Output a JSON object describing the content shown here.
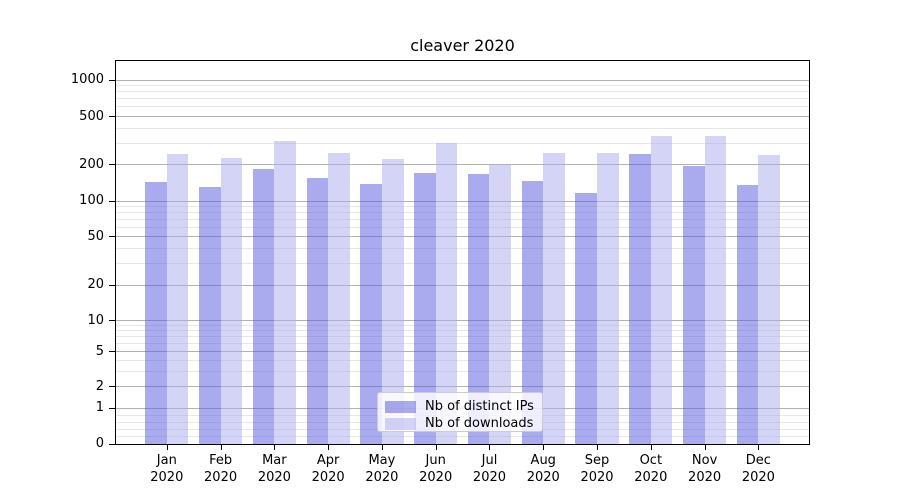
{
  "chart_data": {
    "type": "bar",
    "title": "cleaver 2020",
    "x_categories_month": [
      "Jan",
      "Feb",
      "Mar",
      "Apr",
      "May",
      "Jun",
      "Jul",
      "Aug",
      "Sep",
      "Oct",
      "Nov",
      "Dec"
    ],
    "x_year": "2020",
    "series": [
      {
        "name": "Nb of distinct IPs",
        "color": "#5555dd",
        "display_color": "rgba(85,85,221,0.5)",
        "values": [
          144,
          130,
          186,
          157,
          139,
          171,
          168,
          148,
          117,
          245,
          197,
          137
        ]
      },
      {
        "name": "Nb of downloads",
        "color": "#aaaaee",
        "display_color": "rgba(170,170,238,0.5)",
        "values": [
          244,
          226,
          315,
          248,
          223,
          300,
          202,
          248,
          248,
          345,
          348,
          241
        ]
      }
    ],
    "y_ticks": [
      0,
      1,
      2,
      5,
      10,
      20,
      50,
      100,
      200,
      500,
      1000
    ],
    "y_minor_ticks": [
      0.2,
      0.4,
      0.6,
      0.8,
      3,
      4,
      6,
      7,
      8,
      9,
      30,
      40,
      60,
      70,
      80,
      90,
      300,
      400,
      600,
      700,
      800,
      900
    ],
    "y_scale": "symlog",
    "ylim": [
      0,
      1460
    ],
    "grid": true,
    "legend_position": "lower-center"
  }
}
